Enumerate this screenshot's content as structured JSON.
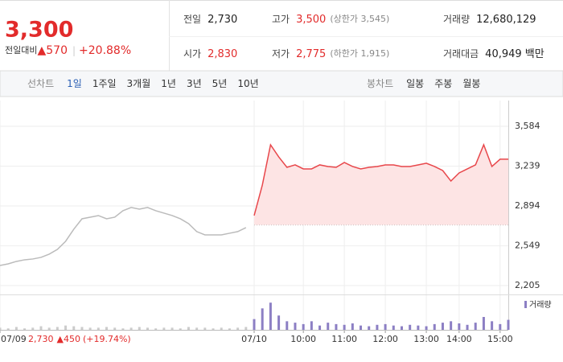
{
  "header": {
    "price": "3,300",
    "change_label": "전일대비",
    "change": "▲570",
    "change_rate": "+20.88%"
  },
  "info": [
    {
      "label": "전일",
      "value": "2,730"
    },
    {
      "label": "고가",
      "value": "3,500",
      "note": "(상한가 3,545)"
    },
    {
      "label": "거래량",
      "value": "12,680,129"
    },
    {
      "label": "시가",
      "value": "2,830"
    },
    {
      "label": "저가",
      "value": "2,775",
      "note": "(하한가 1,915)"
    },
    {
      "label": "거래대금",
      "value": "40,949 백만"
    }
  ],
  "tabs": {
    "line_label": "선차트",
    "line": [
      "1일",
      "1주일",
      "3개월",
      "1년",
      "3년",
      "5년",
      "10년"
    ],
    "candle_label": "봉차트",
    "candle": [
      "일봉",
      "주봉",
      "월봉"
    ]
  },
  "footer": {
    "prev_close": "2,730",
    "prev_change": "▲450",
    "prev_rate": "(+19.74%)"
  },
  "chart_data": {
    "type": "line",
    "ylim": [
      2135,
      3807
    ],
    "yticks": [
      {
        "value": 3584,
        "label": "3,584"
      },
      {
        "value": 3239,
        "label": "3,239"
      },
      {
        "value": 2894,
        "label": "2,894"
      },
      {
        "value": 2549,
        "label": "2,549"
      },
      {
        "value": 2205,
        "label": "2,205"
      }
    ],
    "xlim": [
      0,
      62
    ],
    "xticks": [
      {
        "value": 0,
        "label": "07/09"
      },
      {
        "value": 31,
        "label": "07/10"
      },
      {
        "value": 37,
        "label": "10:00"
      },
      {
        "value": 42,
        "label": "11:00"
      },
      {
        "value": 47,
        "label": "12:00"
      },
      {
        "value": 52,
        "label": "13:00"
      },
      {
        "value": 56,
        "label": "14:00"
      },
      {
        "value": 61,
        "label": "15:00"
      }
    ],
    "baseline": 2730,
    "grid": true,
    "series": [
      {
        "color": "#bbbbbb",
        "x": [
          0,
          1,
          2,
          3,
          4,
          5,
          6,
          7,
          8,
          9,
          10,
          11,
          12,
          13,
          14,
          15,
          16,
          17,
          18,
          19,
          20,
          21,
          22,
          23,
          24,
          25,
          26,
          27,
          28,
          29,
          30
        ],
        "values": [
          2379,
          2393,
          2414,
          2428,
          2435,
          2449,
          2477,
          2518,
          2588,
          2693,
          2783,
          2797,
          2811,
          2783,
          2797,
          2853,
          2881,
          2867,
          2881,
          2853,
          2832,
          2811,
          2783,
          2741,
          2672,
          2644,
          2644,
          2644,
          2658,
          2672,
          2707
        ]
      },
      {
        "color": "#e8474b",
        "fill": "#fde4e4",
        "x": [
          31,
          32,
          33,
          34,
          35,
          36,
          37,
          38,
          39,
          40,
          41,
          42,
          43,
          44,
          45,
          46,
          47,
          48,
          49,
          50,
          51,
          52,
          53,
          54,
          55,
          56,
          57,
          58,
          59,
          60,
          61,
          62
        ],
        "values": [
          2811,
          3076,
          3424,
          3319,
          3229,
          3250,
          3215,
          3215,
          3250,
          3236,
          3229,
          3271,
          3236,
          3215,
          3229,
          3236,
          3250,
          3250,
          3236,
          3236,
          3250,
          3264,
          3236,
          3201,
          3110,
          3180,
          3215,
          3250,
          3424,
          3236,
          3299,
          3299
        ]
      }
    ],
    "volume": {
      "name": "거래량",
      "ylim": [
        0,
        45
      ],
      "series": [
        {
          "color": "#cccccc",
          "values": [
            3,
            2,
            4,
            2,
            3,
            5,
            3,
            4,
            6,
            5,
            4,
            3,
            3,
            4,
            3,
            2,
            3,
            4,
            3,
            2,
            3,
            3,
            2,
            4,
            3,
            3,
            2,
            3,
            2,
            3,
            4
          ]
        },
        {
          "color": "#8c7fc4",
          "values": [
            15,
            30,
            38,
            20,
            12,
            10,
            8,
            12,
            6,
            10,
            8,
            7,
            9,
            6,
            5,
            7,
            8,
            6,
            5,
            7,
            6,
            5,
            8,
            10,
            12,
            9,
            7,
            10,
            18,
            12,
            8,
            14
          ]
        }
      ]
    }
  }
}
